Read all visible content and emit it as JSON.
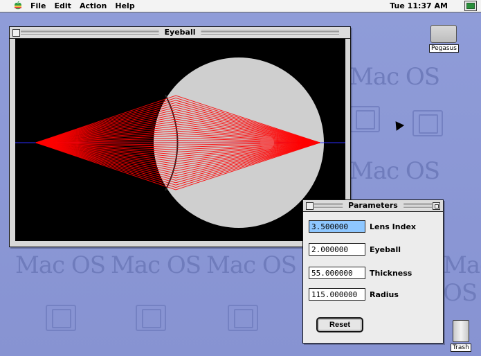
{
  "menubar": {
    "items": [
      "File",
      "Edit",
      "Action",
      "Help"
    ],
    "clock": "Tue 11:37 AM"
  },
  "desktop": {
    "pattern_text": "Mac OS",
    "hd_label": "Pegasus",
    "trash_label": "Trash"
  },
  "eyeball_window": {
    "title": "Eyeball"
  },
  "parameters_window": {
    "title": "Parameters",
    "fields": [
      {
        "value": "3.500000",
        "label": "Lens Index"
      },
      {
        "value": "2.000000",
        "label": "Eyeball"
      },
      {
        "value": "55.000000",
        "label": "Thickness"
      },
      {
        "value": "115.000000",
        "label": "Radius"
      }
    ],
    "reset_label": "Reset"
  },
  "colors": {
    "ray": "#ff0000",
    "eyeball_fill": "#cfcfcf",
    "axis": "#2b2bff",
    "canvas_bg": "#000000"
  }
}
